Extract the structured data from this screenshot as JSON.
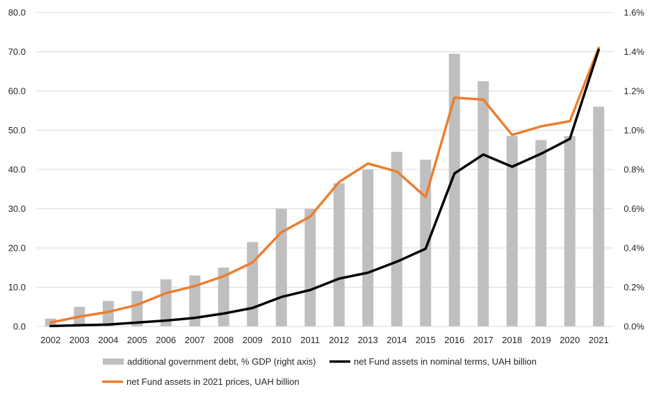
{
  "chart_data": {
    "type": "bar",
    "title": "",
    "categories": [
      "2002",
      "2003",
      "2004",
      "2005",
      "2006",
      "2007",
      "2008",
      "2009",
      "2010",
      "2011",
      "2012",
      "2013",
      "2014",
      "2015",
      "2016",
      "2017",
      "2018",
      "2019",
      "2020",
      "2021"
    ],
    "bar_series": {
      "name": "additional government debt, % GDP (right axis)",
      "axis": "right",
      "color": "#bfbfbf",
      "values": [
        0.04,
        0.1,
        0.13,
        0.18,
        0.24,
        0.26,
        0.3,
        0.43,
        0.6,
        0.6,
        0.73,
        0.8,
        0.89,
        0.85,
        1.39,
        1.25,
        0.97,
        0.95,
        0.97,
        1.12
      ]
    },
    "line_series": [
      {
        "name": "net Fund assets in 2021 prices, UAH billion",
        "axis": "left",
        "color": "#ed7d31",
        "values": [
          1.0,
          2.5,
          3.7,
          5.5,
          8.5,
          10.3,
          12.8,
          16.3,
          24.0,
          28.0,
          36.8,
          41.5,
          39.5,
          33.0,
          58.3,
          57.8,
          48.8,
          51.0,
          52.3,
          71.0
        ]
      },
      {
        "name": "net Fund assets in nominal terms, UAH billion",
        "axis": "left",
        "color": "#000000",
        "values": [
          0.1,
          0.3,
          0.5,
          1.0,
          1.5,
          2.2,
          3.3,
          4.7,
          7.5,
          9.3,
          12.2,
          13.7,
          16.5,
          19.8,
          39.0,
          43.8,
          40.7,
          44.0,
          47.8,
          70.5
        ]
      }
    ],
    "y_left": {
      "ylim": [
        0,
        80
      ],
      "ticks": [
        "0.0",
        "10.0",
        "20.0",
        "30.0",
        "40.0",
        "50.0",
        "60.0",
        "70.0",
        "80.0"
      ]
    },
    "y_right": {
      "ylim": [
        0,
        1.6
      ],
      "ticks": [
        "0.0%",
        "0.2%",
        "0.4%",
        "0.6%",
        "0.8%",
        "1.0%",
        "1.2%",
        "1.4%",
        "1.6%"
      ]
    },
    "grid": true,
    "legend": {
      "placement": "bottom",
      "rows": [
        [
          {
            "label": "additional government debt, % GDP (right axis)",
            "kind": "bar",
            "color": "#bfbfbf"
          },
          {
            "label": "net Fund assets in nominal terms, UAH billion",
            "kind": "line",
            "color": "#000000"
          }
        ],
        [
          {
            "label": "net Fund assets in 2021 prices, UAH billion",
            "kind": "line",
            "color": "#ed7d31"
          }
        ]
      ]
    }
  }
}
